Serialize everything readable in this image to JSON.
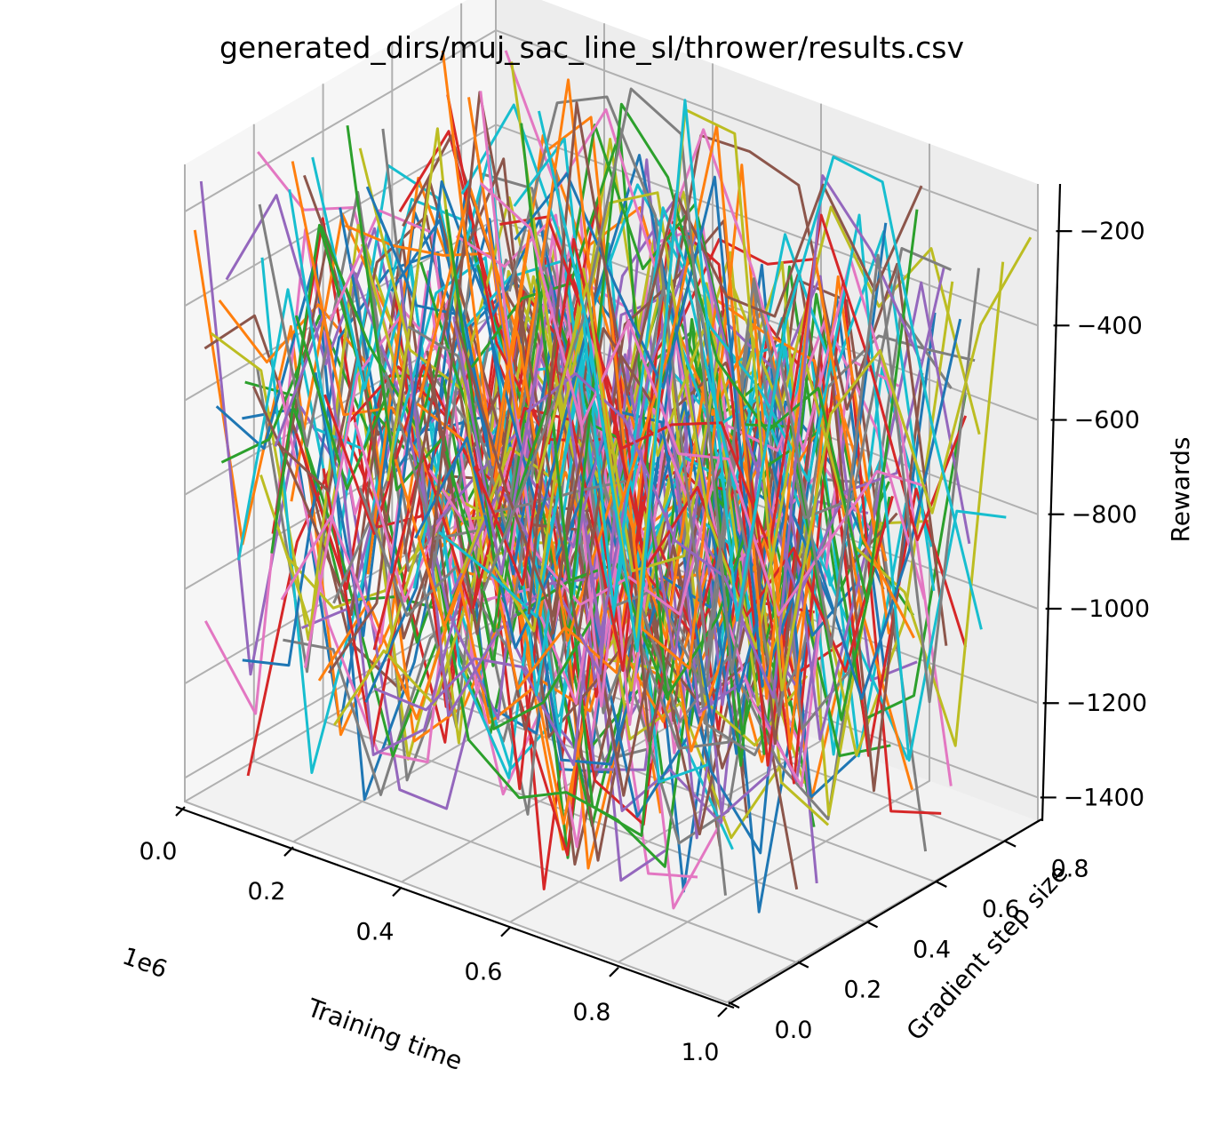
{
  "chart_data": {
    "type": "line",
    "projection": "3d",
    "title": "generated_dirs/muj_sac_line_sl/thrower/results.csv",
    "xlabel": "Training time",
    "ylabel": "Gradient step size",
    "zlabel": "Rewards",
    "x_offset_label": "1e6",
    "xlim": [
      0,
      1.0
    ],
    "ylim": [
      0,
      0.9
    ],
    "zlim": [
      -1450,
      -100
    ],
    "x_ticks": [
      "0.0",
      "0.2",
      "0.4",
      "0.6",
      "0.8",
      "1.0"
    ],
    "x_tick_values": [
      0.0,
      0.2,
      0.4,
      0.6,
      0.8,
      1.0
    ],
    "y_ticks": [
      "0.0",
      "0.2",
      "0.4",
      "0.6",
      "0.8"
    ],
    "y_tick_values": [
      0.0,
      0.2,
      0.4,
      0.6,
      0.8
    ],
    "z_ticks": [
      "−200",
      "−400",
      "−600",
      "−800",
      "−1000",
      "−1200",
      "−1400"
    ],
    "z_tick_values": [
      -200,
      -400,
      -600,
      -800,
      -1000,
      -1200,
      -1400
    ],
    "grid": true,
    "series_count": 120,
    "series_points": 12,
    "reward_range": [
      -1400,
      -150
    ],
    "x_sample_values": [
      0.0,
      0.0909,
      0.1818,
      0.2727,
      0.3636,
      0.4545,
      0.5455,
      0.6364,
      0.7273,
      0.8182,
      0.9091,
      1.0
    ],
    "palette": [
      "#1f77b4",
      "#ff7f0e",
      "#2ca02c",
      "#d62728",
      "#9467bd",
      "#8c564b",
      "#e377c2",
      "#7f7f7f",
      "#bcbd22",
      "#17becf"
    ]
  }
}
